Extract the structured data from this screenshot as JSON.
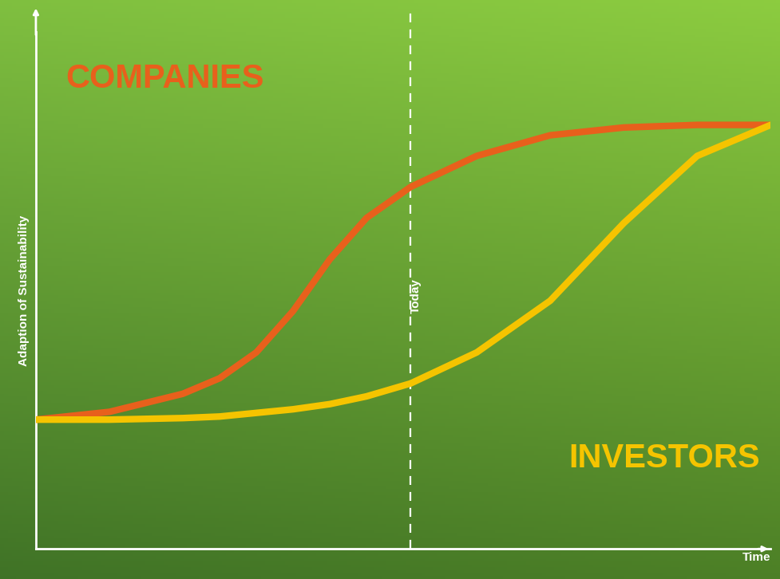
{
  "chart_data": {
    "type": "line",
    "xlabel": "Time",
    "ylabel": "Adaption of Sustainability",
    "x": [
      0,
      10,
      20,
      25,
      30,
      35,
      40,
      45,
      51,
      60,
      70,
      80,
      90,
      100
    ],
    "series": [
      {
        "name": "COMPANIES",
        "color": "#e8601c",
        "line_style": "solid",
        "values": [
          25,
          26.5,
          30,
          33,
          38,
          46,
          56,
          64,
          70,
          76,
          80,
          81.5,
          82,
          82
        ]
      },
      {
        "name": "INVESTORS",
        "color": "#f5c400",
        "line_style": "solid",
        "values": [
          25,
          25,
          25.3,
          25.6,
          26.3,
          27,
          28,
          29.5,
          32,
          38,
          48,
          63,
          76,
          82
        ]
      }
    ],
    "annotations": [
      {
        "text": "Today",
        "x": 51
      }
    ],
    "xlim": [
      0,
      100
    ],
    "ylim": [
      0,
      100
    ],
    "xticks": [],
    "yticks": [],
    "tick_labels": false,
    "grid": false
  }
}
